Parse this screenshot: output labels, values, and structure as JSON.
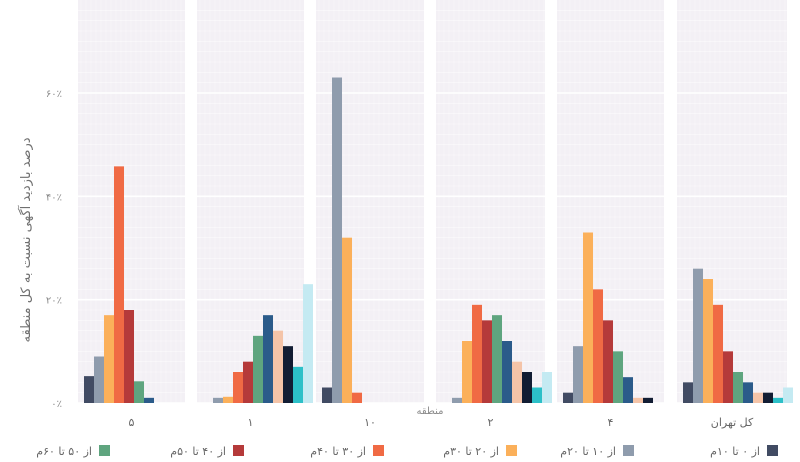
{
  "chart_data": {
    "type": "bar",
    "ylabel": "درصد بازدید آگهی نسبت به کل منطقه",
    "xlabel": "منطقه",
    "y_ticks": [
      {
        "value": 0,
        "label": "۰٪"
      },
      {
        "value": 20,
        "label": "۲۰٪"
      },
      {
        "value": 40,
        "label": "۴۰٪"
      },
      {
        "value": 60,
        "label": "۶۰٪"
      }
    ],
    "ylim": [
      0,
      78
    ],
    "grid": true,
    "legend_position": "bottom",
    "panel_background": "#f3f0f5",
    "panels": [
      {
        "label": "۵",
        "values": [
          5.2,
          9,
          17,
          45.8,
          18,
          4.2,
          1
        ]
      },
      {
        "label": "۱",
        "values": [
          0,
          1,
          1.2,
          6,
          8,
          13,
          17,
          14,
          11,
          7,
          23
        ]
      },
      {
        "label": "۱۰",
        "values": [
          3,
          63,
          32,
          2
        ]
      },
      {
        "label": "۲",
        "values": [
          0,
          1,
          12,
          19,
          16,
          17,
          12,
          8,
          6,
          3,
          6
        ]
      },
      {
        "label": "۴",
        "values": [
          2,
          11,
          33,
          22,
          16,
          10,
          5,
          1,
          1
        ]
      },
      {
        "label": "کل تهران",
        "values": [
          4,
          26,
          24,
          19,
          10,
          6,
          4,
          2,
          2,
          1,
          3
        ]
      }
    ],
    "series": [
      {
        "name": "از ۰ تا ۱۰م",
        "color": "#414b63"
      },
      {
        "name": "از ۱۰ تا ۲۰م",
        "color": "#8f9cad"
      },
      {
        "name": "از ۲۰ تا ۳۰م",
        "color": "#fbb05a"
      },
      {
        "name": "از ۳۰ تا ۴۰م",
        "color": "#f06a44"
      },
      {
        "name": "از ۴۰ تا ۵۰م",
        "color": "#b53a3a"
      },
      {
        "name": "از ۵۰ تا ۶۰م",
        "color": "#5fa57f"
      },
      {
        "name": "",
        "color": "#2b5b8a"
      },
      {
        "name": "",
        "color": "#f4c4a8"
      },
      {
        "name": "",
        "color": "#121d33"
      },
      {
        "name": "",
        "color": "#2cc0c8"
      },
      {
        "name": "",
        "color": "#c4eaf2"
      }
    ]
  }
}
